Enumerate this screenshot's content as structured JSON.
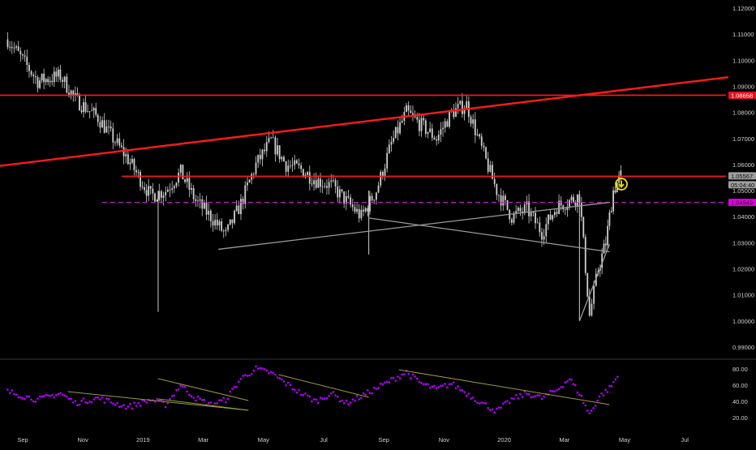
{
  "colors": {
    "background": "#000000",
    "candle": "#cfcfcf",
    "axis_text": "#d0d0d0",
    "separator": "#333333",
    "red_line": "#ff1a1a",
    "resistance_badge": "#e8111f",
    "current_badge": "#9e9e9e",
    "magenta_line": "#c620c6",
    "magenta_badge": "#e000e0",
    "trend_white": "#9a9a9a",
    "rsi_dots": "#b000ff",
    "rsi_trend": "#9a9a3a",
    "alert_icon": "#f0e000"
  },
  "icons": {
    "alert": "down-arrow-circle-icon"
  },
  "chart_data": [
    {
      "type": "candlestick",
      "title": "",
      "y_ticks": [
        "1.12000",
        "1.11000",
        "1.10000",
        "1.09000",
        "1.08000",
        "1.07000",
        "1.06000",
        "1.05000",
        "1.04000",
        "1.03000",
        "1.02000",
        "1.01000",
        "1.00000",
        "0.99000"
      ],
      "ylim": [
        0.985,
        1.12
      ],
      "x_ticks": [
        "Sep",
        "Nov",
        "2019",
        "Mar",
        "May",
        "Jul",
        "Sep",
        "Nov",
        "2020",
        "Mar",
        "May",
        "Jul"
      ],
      "price_labels": {
        "resistance": "1.08658",
        "current": "1.05567",
        "countdown": "05:04:40",
        "magenta": "1.04549"
      },
      "horizontal_lines": [
        {
          "level": 1.08658,
          "style": "solid",
          "color": "red"
        },
        {
          "level": 1.0555,
          "style": "solid",
          "color": "red"
        },
        {
          "level": 1.04549,
          "style": "dashed",
          "color": "magenta"
        }
      ],
      "trendlines": [
        {
          "from": [
            "Aug 2018",
            1.0595
          ],
          "to": [
            "May 2020",
            1.0935
          ],
          "color": "red"
        },
        {
          "from": [
            "Mar 2019",
            1.0275
          ],
          "to": [
            "Apr 2020",
            1.0455
          ],
          "color": "white"
        },
        {
          "from": [
            "Aug 2019",
            1.0395
          ],
          "to": [
            "Apr 2020",
            1.0265
          ],
          "color": "white"
        },
        {
          "from": [
            "Mar 2020",
            1.0
          ],
          "to": [
            "Apr 2020",
            1.0295
          ],
          "color": "white"
        }
      ],
      "close_path": [
        [
          "Aug 2018",
          1.108
        ],
        [
          "Sep 2018",
          1.092
        ],
        [
          "Oct 2018",
          1.094
        ],
        [
          "Oct 2018",
          1.085
        ],
        [
          "Nov 2018",
          1.078
        ],
        [
          "Dec 2018",
          1.062
        ],
        [
          "Jan 2019",
          1.048
        ],
        [
          "Jan 2019",
          1.05
        ],
        [
          "Feb 2019",
          1.057
        ],
        [
          "Feb 2019",
          1.046
        ],
        [
          "Mar 2019",
          1.04
        ],
        [
          "Mar 2019",
          1.033
        ],
        [
          "Apr 2019",
          1.045
        ],
        [
          "Apr 2019",
          1.06
        ],
        [
          "May 2019",
          1.069
        ],
        [
          "May 2019",
          1.06
        ],
        [
          "Jun 2019",
          1.058
        ],
        [
          "Jun 2019",
          1.054
        ],
        [
          "Jul 2019",
          1.052
        ],
        [
          "Jul 2019",
          1.046
        ],
        [
          "Aug 2019",
          1.04
        ],
        [
          "Aug 2019",
          1.05
        ],
        [
          "Sep 2019",
          1.068
        ],
        [
          "Sep 2019",
          1.08
        ],
        [
          "Oct 2019",
          1.075
        ],
        [
          "Oct 2019",
          1.07
        ],
        [
          "Nov 2019",
          1.08
        ],
        [
          "Nov 2019",
          1.083
        ],
        [
          "Dec 2019",
          1.066
        ],
        [
          "Dec 2019",
          1.05
        ],
        [
          "Jan 2020",
          1.04
        ],
        [
          "Jan 2020",
          1.043
        ],
        [
          "Feb 2020",
          1.034
        ],
        [
          "Feb 2020",
          1.044
        ],
        [
          "Mar 2020",
          1.046
        ],
        [
          "Mar 2020",
          1.048
        ],
        [
          "Mar 2020",
          1.002
        ],
        [
          "Apr 2020",
          1.02
        ],
        [
          "Apr 2020",
          1.03
        ],
        [
          "Apr 2020",
          1.05
        ],
        [
          "Apr 2020",
          1.0556
        ]
      ],
      "wick_spikes": [
        {
          "date": "Jan 2019",
          "low": 1.0035
        },
        {
          "date": "Aug 2019",
          "low": 1.0255
        },
        {
          "date": "Mar 2020",
          "low": 1.0
        }
      ]
    },
    {
      "type": "scatter",
      "title": "",
      "y_ticks": [
        "80.00",
        "60.00",
        "40.00",
        "20.00"
      ],
      "ylim": [
        12,
        90
      ],
      "trendlines": [
        {
          "from": [
            "Oct 2018",
            52
          ],
          "to": [
            "Apr 2019",
            29
          ]
        },
        {
          "from": [
            "Jan 2019",
            43
          ],
          "to": [
            "Apr 2019",
            29
          ]
        },
        {
          "from": [
            "Jan 2019",
            68
          ],
          "to": [
            "Apr 2019",
            41
          ]
        },
        {
          "from": [
            "May 2019",
            73
          ],
          "to": [
            "Aug 2019",
            45
          ]
        },
        {
          "from": [
            "Sep 2019",
            79
          ],
          "to": [
            "Apr 2020",
            36
          ]
        }
      ],
      "rsi_path": [
        [
          "Aug 2018",
          52
        ],
        [
          "Sep 2018",
          42
        ],
        [
          "Oct 2018",
          50
        ],
        [
          "Oct 2018",
          38
        ],
        [
          "Nov 2018",
          44
        ],
        [
          "Dec 2018",
          33
        ],
        [
          "Jan 2019",
          42
        ],
        [
          "Jan 2019",
          36
        ],
        [
          "Feb 2019",
          60
        ],
        [
          "Feb 2019",
          44
        ],
        [
          "Mar 2019",
          36
        ],
        [
          "Mar 2019",
          42
        ],
        [
          "Apr 2019",
          68
        ],
        [
          "Apr 2019",
          80
        ],
        [
          "May 2019",
          75
        ],
        [
          "May 2019",
          62
        ],
        [
          "Jun 2019",
          50
        ],
        [
          "Jun 2019",
          40
        ],
        [
          "Jul 2019",
          50
        ],
        [
          "Jul 2019",
          38
        ],
        [
          "Aug 2019",
          46
        ],
        [
          "Aug 2019",
          56
        ],
        [
          "Sep 2019",
          66
        ],
        [
          "Sep 2019",
          76
        ],
        [
          "Oct 2019",
          62
        ],
        [
          "Oct 2019",
          55
        ],
        [
          "Nov 2019",
          62
        ],
        [
          "Nov 2019",
          50
        ],
        [
          "Dec 2019",
          38
        ],
        [
          "Dec 2019",
          28
        ],
        [
          "Jan 2020",
          42
        ],
        [
          "Jan 2020",
          50
        ],
        [
          "Feb 2020",
          44
        ],
        [
          "Feb 2020",
          54
        ],
        [
          "Mar 2020",
          68
        ],
        [
          "Mar 2020",
          50
        ],
        [
          "Mar 2020",
          24
        ],
        [
          "Apr 2020",
          46
        ],
        [
          "Apr 2020",
          56
        ],
        [
          "Apr 2020",
          74
        ]
      ]
    }
  ]
}
